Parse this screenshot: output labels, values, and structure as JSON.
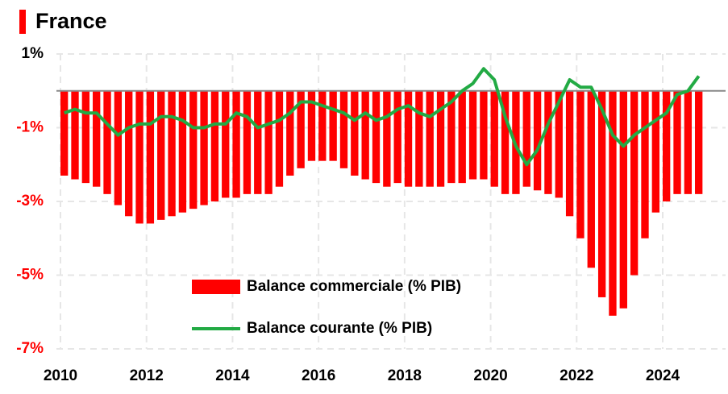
{
  "chart_data": {
    "type": "bar_line",
    "title": "France",
    "x": [
      2010,
      2010.25,
      2010.5,
      2010.75,
      2011,
      2011.25,
      2011.5,
      2011.75,
      2012,
      2012.25,
      2012.5,
      2012.75,
      2013,
      2013.25,
      2013.5,
      2013.75,
      2014,
      2014.25,
      2014.5,
      2014.75,
      2015,
      2015.25,
      2015.5,
      2015.75,
      2016,
      2016.25,
      2016.5,
      2016.75,
      2017,
      2017.25,
      2017.5,
      2017.75,
      2018,
      2018.25,
      2018.5,
      2018.75,
      2019,
      2019.25,
      2019.5,
      2019.75,
      2020,
      2020.25,
      2020.5,
      2020.75,
      2021,
      2021.25,
      2021.5,
      2021.75,
      2022,
      2022.25,
      2022.5,
      2022.75,
      2023,
      2023.25,
      2023.5,
      2023.75,
      2024,
      2024.25,
      2024.5,
      2024.75
    ],
    "series": [
      {
        "name": "Balance commerciale (% PIB)",
        "color": "#ff0000",
        "kind": "bar",
        "values": [
          -2.3,
          -2.4,
          -2.5,
          -2.6,
          -2.8,
          -3.1,
          -3.4,
          -3.6,
          -3.6,
          -3.5,
          -3.4,
          -3.3,
          -3.2,
          -3.1,
          -3.0,
          -2.9,
          -2.9,
          -2.8,
          -2.8,
          -2.8,
          -2.6,
          -2.3,
          -2.1,
          -1.9,
          -1.9,
          -1.9,
          -2.1,
          -2.3,
          -2.4,
          -2.5,
          -2.6,
          -2.5,
          -2.6,
          -2.6,
          -2.6,
          -2.6,
          -2.5,
          -2.5,
          -2.4,
          -2.4,
          -2.6,
          -2.8,
          -2.8,
          -2.6,
          -2.7,
          -2.8,
          -2.9,
          -3.4,
          -4.0,
          -4.8,
          -5.6,
          -6.1,
          -5.9,
          -5.0,
          -4.0,
          -3.3,
          -3.0,
          -2.8,
          -2.8,
          -2.8
        ]
      },
      {
        "name": "Balance courante (% PIB)",
        "color": "#22aa44",
        "kind": "line",
        "values": [
          -0.6,
          -0.5,
          -0.6,
          -0.6,
          -0.9,
          -1.2,
          -1.0,
          -0.9,
          -0.9,
          -0.7,
          -0.7,
          -0.8,
          -1.0,
          -1.0,
          -0.9,
          -0.9,
          -0.6,
          -0.7,
          -1.0,
          -0.9,
          -0.8,
          -0.6,
          -0.3,
          -0.3,
          -0.4,
          -0.5,
          -0.6,
          -0.8,
          -0.6,
          -0.8,
          -0.7,
          -0.5,
          -0.4,
          -0.6,
          -0.7,
          -0.5,
          -0.3,
          0.0,
          0.2,
          0.6,
          0.3,
          -0.7,
          -1.5,
          -2.0,
          -1.6,
          -0.9,
          -0.3,
          0.3,
          0.1,
          0.1,
          -0.5,
          -1.2,
          -1.5,
          -1.2,
          -1.0,
          -0.8,
          -0.6,
          -0.1,
          0.0,
          0.4
        ]
      }
    ],
    "ylim": [
      -7,
      1
    ],
    "yticks": [
      {
        "value": 1,
        "label": "1%"
      },
      {
        "value": -1,
        "label": "-1%"
      },
      {
        "value": -3,
        "label": "-3%"
      },
      {
        "value": -5,
        "label": "-5%"
      },
      {
        "value": -7,
        "label": "-7%"
      }
    ],
    "xlim": [
      2010,
      2025.5
    ],
    "xticks": [
      2010,
      2012,
      2014,
      2016,
      2018,
      2020,
      2022,
      2024
    ],
    "grid": true
  }
}
